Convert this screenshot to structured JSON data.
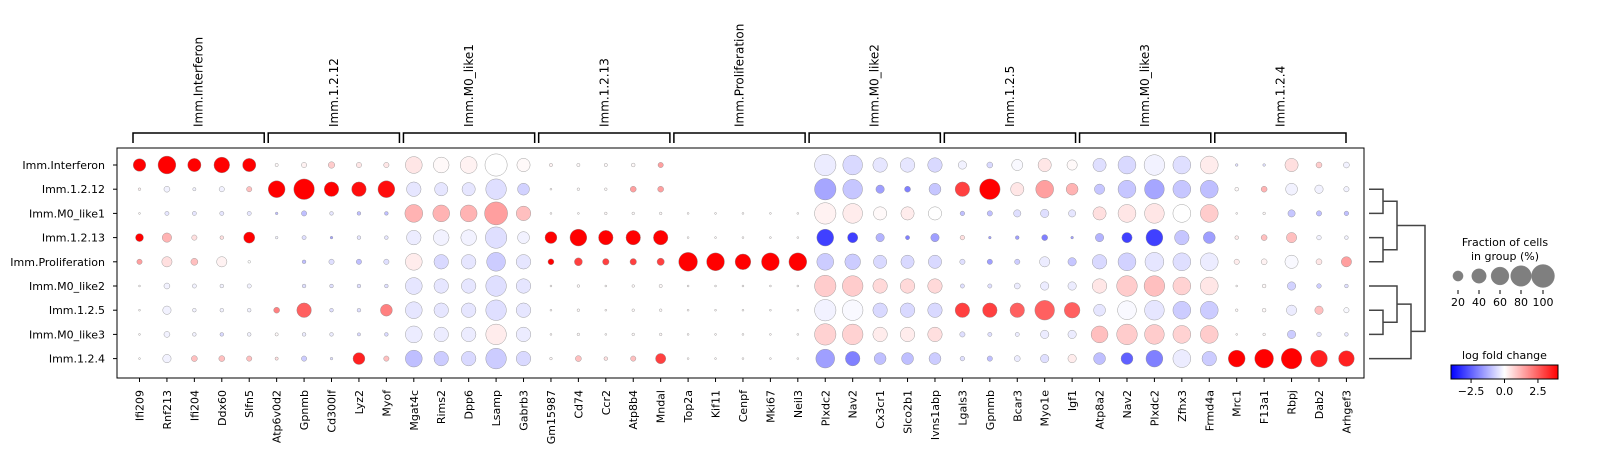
{
  "chart_data": {
    "type": "dotplot",
    "groups": [
      "Imm.Interferon",
      "Imm.1.2.12",
      "Imm.M0_like1",
      "Imm.1.2.13",
      "Imm.Proliferation",
      "Imm.M0_like2",
      "Imm.1.2.5",
      "Imm.M0_like3",
      "Imm.1.2.4"
    ],
    "gene_groups": [
      {
        "label": "Imm.Interferon",
        "genes": [
          "Ifi209",
          "Rnf213",
          "Ifi204",
          "Ddx60",
          "Slfn5"
        ]
      },
      {
        "label": "Imm.1.2.12",
        "genes": [
          "Atp6v0d2",
          "Gpnmb",
          "Cd300lf",
          "Lyz2",
          "Myof"
        ]
      },
      {
        "label": "Imm.M0_like1",
        "genes": [
          "Mgat4c",
          "Rims2",
          "Dpp6",
          "Lsamp",
          "Gabrb3"
        ]
      },
      {
        "label": "Imm.1.2.13",
        "genes": [
          "Gm15987",
          "Cd74",
          "Ccr2",
          "Atp8b4",
          "Mndal"
        ]
      },
      {
        "label": "Imm.Proliferation",
        "genes": [
          "Top2a",
          "Kif11",
          "Cenpf",
          "Mki67",
          "Neil3"
        ]
      },
      {
        "label": "Imm.M0_like2",
        "genes": [
          "Plxdc2",
          "Nav2",
          "Cx3cr1",
          "Slco2b1",
          "Ivns1abp"
        ]
      },
      {
        "label": "Imm.1.2.5",
        "genes": [
          "Lgals3",
          "Gpnmb",
          "Bcar3",
          "Myo1e",
          "Igf1"
        ]
      },
      {
        "label": "Imm.M0_like3",
        "genes": [
          "Atp8a2",
          "Nav2",
          "Plxdc2",
          "Zfhx3",
          "Frmd4a"
        ]
      },
      {
        "label": "Imm.1.2.4",
        "genes": [
          "Mrc1",
          "F13a1",
          "Rbpj",
          "Dab2",
          "Arhgef3"
        ]
      }
    ],
    "fraction": [
      [
        45,
        90,
        50,
        70,
        50,
        3,
        8,
        12,
        8,
        8,
        80,
        70,
        80,
        140,
        50,
        3,
        3,
        3,
        4,
        8,
        0,
        0,
        0,
        0,
        0,
        130,
        110,
        60,
        60,
        60,
        20,
        10,
        35,
        50,
        30,
        50,
        90,
        120,
        90,
        90,
        2,
        2,
        50,
        10,
        10
      ],
      [
        2,
        10,
        3,
        8,
        8,
        80,
        120,
        60,
        60,
        80,
        60,
        50,
        50,
        120,
        40,
        1,
        2,
        2,
        10,
        10,
        0,
        0,
        0,
        0,
        0,
        130,
        110,
        20,
        10,
        40,
        60,
        120,
        50,
        90,
        40,
        30,
        90,
        110,
        90,
        90,
        4,
        10,
        40,
        20,
        8
      ],
      [
        1,
        5,
        5,
        5,
        5,
        2,
        8,
        4,
        4,
        4,
        90,
        80,
        80,
        150,
        60,
        1,
        1,
        2,
        2,
        2,
        1,
        1,
        1,
        1,
        1,
        130,
        110,
        50,
        50,
        50,
        6,
        8,
        15,
        20,
        15,
        50,
        90,
        110,
        90,
        90,
        1,
        2,
        15,
        8,
        6
      ],
      [
        18,
        25,
        8,
        4,
        35,
        2,
        5,
        2,
        4,
        4,
        60,
        70,
        70,
        130,
        40,
        40,
        80,
        60,
        60,
        60,
        1,
        1,
        1,
        1,
        1,
        80,
        30,
        20,
        5,
        20,
        6,
        2,
        4,
        10,
        2,
        20,
        30,
        80,
        60,
        40,
        4,
        10,
        30,
        6,
        4
      ],
      [
        8,
        30,
        14,
        30,
        2,
        0,
        4,
        8,
        8,
        8,
        80,
        60,
        60,
        100,
        60,
        10,
        18,
        12,
        12,
        15,
        100,
        90,
        70,
        90,
        90,
        80,
        70,
        50,
        50,
        50,
        8,
        8,
        8,
        30,
        20,
        60,
        90,
        100,
        90,
        90,
        8,
        10,
        50,
        10,
        30
      ],
      [
        1,
        10,
        5,
        4,
        5,
        0,
        4,
        4,
        4,
        4,
        80,
        60,
        60,
        120,
        60,
        1,
        2,
        1,
        2,
        3,
        1,
        1,
        1,
        1,
        1,
        130,
        120,
        60,
        60,
        60,
        5,
        5,
        10,
        20,
        20,
        60,
        120,
        120,
        90,
        90,
        1,
        4,
        20,
        6,
        4
      ],
      [
        1,
        20,
        4,
        4,
        4,
        10,
        60,
        4,
        4,
        40,
        80,
        60,
        60,
        120,
        60,
        1,
        2,
        1,
        2,
        2,
        1,
        1,
        1,
        1,
        1,
        130,
        120,
        60,
        60,
        60,
        60,
        60,
        60,
        110,
        70,
        40,
        100,
        110,
        90,
        90,
        2,
        4,
        30,
        20,
        8
      ],
      [
        1,
        10,
        4,
        4,
        4,
        3,
        4,
        4,
        3,
        4,
        80,
        60,
        60,
        120,
        60,
        1,
        2,
        1,
        2,
        2,
        1,
        1,
        1,
        1,
        1,
        130,
        120,
        60,
        60,
        60,
        8,
        5,
        5,
        20,
        20,
        80,
        120,
        110,
        90,
        90,
        1,
        2,
        20,
        6,
        4
      ],
      [
        1,
        20,
        10,
        10,
        8,
        3,
        8,
        2,
        40,
        8,
        80,
        60,
        60,
        120,
        60,
        2,
        10,
        4,
        8,
        30,
        1,
        1,
        1,
        1,
        1,
        100,
        60,
        40,
        40,
        40,
        6,
        8,
        10,
        20,
        20,
        40,
        40,
        80,
        90,
        60,
        80,
        100,
        120,
        80,
        70
      ]
    ],
    "logfc": [
      [
        4.0,
        4.0,
        4.0,
        4.0,
        4.0,
        0.1,
        0.2,
        0.8,
        0.4,
        0.4,
        0.4,
        0.1,
        0.2,
        0.0,
        0.1,
        0.2,
        0.1,
        0.1,
        0.1,
        1.5,
        0,
        0,
        0,
        0,
        0,
        -0.3,
        -0.6,
        -0.4,
        -0.4,
        -0.6,
        -0.2,
        -0.6,
        -0.1,
        0.4,
        0.1,
        -0.5,
        -0.6,
        -0.2,
        -0.5,
        0.3,
        -0.5,
        -0.5,
        0.5,
        0.8,
        -0.2
      ],
      [
        0.2,
        -0.2,
        -0.2,
        -0.2,
        1.0,
        4.0,
        4.0,
        4.0,
        3.8,
        3.8,
        -0.4,
        -0.4,
        -0.4,
        -0.5,
        -0.7,
        0.1,
        0.1,
        0.1,
        1.5,
        1.5,
        0,
        0,
        0,
        0,
        0,
        -1.4,
        -0.9,
        -1.5,
        -2.0,
        -0.9,
        3.0,
        4.0,
        0.4,
        1.5,
        1.2,
        -0.9,
        -0.9,
        -1.4,
        -0.9,
        -1.0,
        0.1,
        1.2,
        -0.2,
        -0.2,
        -0.2
      ],
      [
        0.1,
        -0.4,
        -0.4,
        -0.4,
        -0.4,
        -1.0,
        -1.0,
        -0.4,
        -1.0,
        -1.0,
        1.2,
        1.2,
        1.2,
        1.5,
        1.0,
        0.1,
        0.1,
        0.1,
        0.1,
        0.1,
        0.1,
        0.1,
        0.1,
        0.1,
        0.1,
        0.2,
        0.3,
        0.1,
        0.3,
        0.0,
        -1.0,
        -1.0,
        -0.5,
        -0.5,
        -0.4,
        0.5,
        0.4,
        0.4,
        0.0,
        0.8,
        0.1,
        0.1,
        -0.9,
        -1.0,
        -1.0
      ],
      [
        4.0,
        1.2,
        0.5,
        0.5,
        4.0,
        -0.2,
        -0.5,
        -1.4,
        -0.4,
        -0.4,
        -0.3,
        -0.2,
        -0.2,
        -0.5,
        -0.2,
        4.0,
        4.0,
        4.0,
        4.0,
        4.0,
        0.1,
        0.1,
        0.1,
        0.1,
        0.1,
        -3.0,
        -3.0,
        -1.2,
        -2.0,
        -1.5,
        0.5,
        -1.5,
        -1.5,
        -2.0,
        -1.5,
        -1.2,
        -3.0,
        -3.0,
        -0.9,
        -1.5,
        0.3,
        1.0,
        1.0,
        -0.2,
        -0.2
      ],
      [
        1.5,
        0.5,
        1.0,
        0.2,
        0.0,
        0.0,
        -1.0,
        -0.5,
        -1.0,
        -0.5,
        0.3,
        -0.6,
        -0.4,
        -0.8,
        -0.4,
        4.0,
        3.0,
        3.0,
        3.0,
        3.0,
        4.0,
        4.0,
        4.0,
        4.0,
        4.0,
        -0.8,
        -0.8,
        -0.6,
        -0.6,
        -0.6,
        -0.5,
        -1.5,
        -0.8,
        -0.3,
        -0.9,
        -0.6,
        -0.7,
        -0.4,
        -0.5,
        -0.3,
        0.3,
        0.2,
        -0.1,
        0.4,
        1.5
      ],
      [
        0.1,
        -0.2,
        -0.2,
        -0.2,
        -0.2,
        0.0,
        -0.5,
        -0.5,
        -0.5,
        -0.5,
        -0.4,
        -0.4,
        -0.4,
        -0.5,
        -0.4,
        0.1,
        0.1,
        0.1,
        0.1,
        0.1,
        0.1,
        0.1,
        0.1,
        0.1,
        0.1,
        0.8,
        0.8,
        0.6,
        0.6,
        0.6,
        -0.5,
        -0.5,
        -0.3,
        -0.3,
        -0.3,
        0.4,
        0.8,
        1.0,
        0.7,
        0.4,
        0.1,
        0.1,
        -0.7,
        -0.8,
        -0.5
      ],
      [
        0.1,
        -0.2,
        -0.2,
        -0.2,
        -0.2,
        2.0,
        2.5,
        -0.5,
        -0.5,
        2.0,
        -0.4,
        -0.4,
        -0.4,
        -0.5,
        -0.4,
        0.1,
        0.1,
        0.1,
        0.1,
        0.1,
        0.1,
        0.1,
        0.1,
        0.1,
        0.1,
        -0.2,
        -0.1,
        -0.6,
        -0.6,
        -0.6,
        3.0,
        3.0,
        2.5,
        2.5,
        2.5,
        -0.4,
        -0.1,
        -0.4,
        -0.8,
        -0.8,
        0.1,
        0.1,
        -0.3,
        1.0,
        -0.1
      ],
      [
        0.1,
        -0.2,
        -0.2,
        -0.6,
        -0.2,
        0.1,
        -0.3,
        -0.3,
        -0.6,
        -0.6,
        -0.3,
        -0.3,
        -0.3,
        0.3,
        -0.3,
        0.1,
        0.1,
        0.1,
        0.1,
        0.1,
        0.1,
        0.1,
        0.1,
        0.1,
        0.1,
        0.7,
        0.7,
        0.3,
        0.3,
        0.5,
        -0.5,
        -0.5,
        -0.3,
        -0.3,
        -0.3,
        1.0,
        0.8,
        0.8,
        0.7,
        0.8,
        0.1,
        0.1,
        -0.8,
        -0.4,
        -0.4
      ],
      [
        0.1,
        -0.2,
        1.0,
        1.0,
        1.0,
        0.5,
        -0.8,
        -0.5,
        3.5,
        1.0,
        -1.0,
        -0.8,
        -0.6,
        -0.8,
        -0.6,
        0.1,
        1.0,
        0.5,
        1.0,
        3.0,
        0.1,
        0.1,
        0.1,
        0.1,
        0.1,
        -1.5,
        -2.0,
        -1.0,
        -1.0,
        -0.8,
        -0.5,
        -1.0,
        -0.3,
        -0.5,
        0.3,
        -1.0,
        -2.5,
        -2.0,
        -0.3,
        -0.8,
        4.0,
        4.0,
        4.0,
        3.5,
        3.5
      ]
    ],
    "colorbar": {
      "title": "log fold change",
      "ticks": [
        "−2.5",
        "0.0",
        "2.5"
      ],
      "range": [
        -4,
        4
      ]
    },
    "size_legend": {
      "title_line1": "Fraction of cells",
      "title_line2": "in group (%)",
      "ticks": [
        "20",
        "40",
        "60",
        "80",
        "100"
      ]
    },
    "dendrogram": {
      "tree": [
        [
          [
            1,
            2
          ],
          [
            3,
            4
          ]
        ],
        [
          [
            5,
            [
              6,
              7
            ]
          ],
          8
        ]
      ]
    }
  }
}
